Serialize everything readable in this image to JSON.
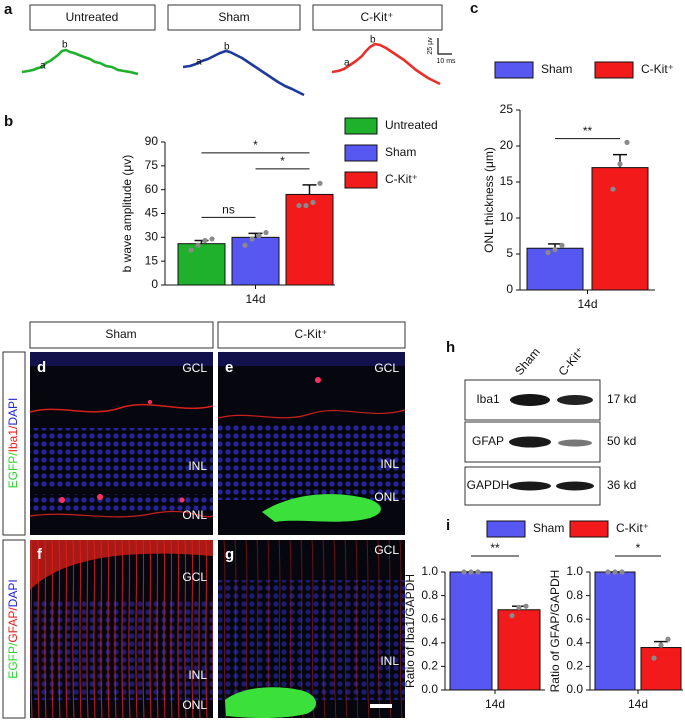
{
  "figure": {
    "panel_letters": [
      "a",
      "b",
      "c",
      "d",
      "e",
      "f",
      "g",
      "h",
      "i"
    ],
    "erg": {
      "conditions": [
        "Untreated",
        "Sham",
        "C-Kit⁺"
      ],
      "wave_labels": [
        "a",
        "b"
      ],
      "scale_y": "25 μv",
      "scale_x": "10 ms"
    },
    "histology": {
      "columns": [
        "Sham",
        "C-Kit⁺"
      ],
      "row_labels": [
        [
          {
            "text": "EGFP/",
            "color": "#2fd12f"
          },
          {
            "text": "Iba1/",
            "color": "#e8201c"
          },
          {
            "text": "DAPI",
            "color": "#2424d8"
          }
        ],
        [
          {
            "text": "EGFP/",
            "color": "#2fd12f"
          },
          {
            "text": "GFAP/",
            "color": "#e8201c"
          },
          {
            "text": "DAPI",
            "color": "#2424d8"
          }
        ]
      ],
      "layers": [
        "GCL",
        "INL",
        "ONL"
      ]
    },
    "blot": {
      "lanes": [
        "Sham",
        "C-Kit⁺"
      ],
      "rows": [
        {
          "protein": "Iba1",
          "size": "17 kd"
        },
        {
          "protein": "GFAP",
          "size": "50 kd"
        },
        {
          "protein": "GAPDH",
          "size": "36 kd"
        }
      ]
    }
  },
  "chart_data": [
    {
      "type": "bar",
      "ylabel": "b wave amplitude (μv)",
      "categories": [
        "14d"
      ],
      "ylim": [
        0,
        90
      ],
      "yticks": [
        0,
        15,
        30,
        45,
        60,
        75,
        90
      ],
      "legend": "right",
      "series": [
        {
          "name": "Untreated",
          "color": "#1fb02c",
          "values": [
            26
          ],
          "errors": [
            2
          ],
          "points": [
            [
              22,
              25,
              28,
              29
            ]
          ]
        },
        {
          "name": "Sham",
          "color": "#5757f2",
          "values": [
            30
          ],
          "errors": [
            2.5
          ],
          "points": [
            [
              25,
              29,
              31,
              33
            ]
          ]
        },
        {
          "name": "C-Kit⁺",
          "color": "#f21a1a",
          "values": [
            57
          ],
          "errors": [
            6
          ],
          "points": [
            [
              50,
              50,
              52,
              64
            ]
          ]
        }
      ],
      "annotations": [
        {
          "text": "ns",
          "between": [
            "Untreated",
            "Sham"
          ]
        },
        {
          "text": "*",
          "between": [
            "Sham",
            "C-Kit⁺"
          ]
        },
        {
          "text": "*",
          "between": [
            "Untreated",
            "C-Kit⁺"
          ]
        }
      ]
    },
    {
      "type": "bar",
      "ylabel": "ONL thickness (μm)",
      "categories": [
        "14d"
      ],
      "ylim": [
        0,
        25
      ],
      "yticks": [
        0,
        5,
        10,
        15,
        20,
        25
      ],
      "legend": "top",
      "series": [
        {
          "name": "Sham",
          "color": "#5757f2",
          "values": [
            5.8
          ],
          "errors": [
            0.6
          ],
          "points": [
            [
              5.2,
              5.6,
              6.2
            ]
          ]
        },
        {
          "name": "C-Kit⁺",
          "color": "#f21a1a",
          "values": [
            17
          ],
          "errors": [
            1.8
          ],
          "points": [
            [
              14,
              17.5,
              20.5
            ]
          ]
        }
      ],
      "annotations": [
        {
          "text": "**",
          "between": [
            "Sham",
            "C-Kit⁺"
          ]
        }
      ]
    },
    {
      "type": "bar",
      "ylabel": "Ratio of Iba1/GAPDH",
      "categories": [
        "14d"
      ],
      "ylim": [
        0,
        1
      ],
      "yticks": [
        {
          "value": 0,
          "label": "0.0"
        },
        0.2,
        0.4,
        0.6,
        0.8,
        {
          "value": 1,
          "label": "1.0"
        }
      ],
      "legend": "top",
      "series": [
        {
          "name": "Sham",
          "color": "#5757f2",
          "values": [
            1
          ],
          "errors": [
            0
          ],
          "points": [
            [
              1,
              1,
              1
            ]
          ]
        },
        {
          "name": "C-Kit⁺",
          "color": "#f21a1a",
          "values": [
            0.68
          ],
          "errors": [
            0.03
          ],
          "points": [
            [
              0.63,
              0.7,
              0.71
            ]
          ]
        }
      ],
      "annotations": [
        {
          "text": "**",
          "between": [
            "Sham",
            "C-Kit⁺"
          ]
        }
      ]
    },
    {
      "type": "bar",
      "ylabel": "Ratio of GFAP/GAPDH",
      "categories": [
        "14d"
      ],
      "ylim": [
        0,
        1
      ],
      "yticks": [
        {
          "value": 0,
          "label": "0.0"
        },
        0.2,
        0.4,
        0.6,
        0.8,
        {
          "value": 1,
          "label": "1.0"
        }
      ],
      "legend": false,
      "series": [
        {
          "name": "Sham",
          "color": "#5757f2",
          "values": [
            1
          ],
          "errors": [
            0
          ],
          "points": [
            [
              1,
              1,
              1
            ]
          ]
        },
        {
          "name": "C-Kit⁺",
          "color": "#f21a1a",
          "values": [
            0.36
          ],
          "errors": [
            0.05
          ],
          "points": [
            [
              0.27,
              0.38,
              0.43
            ]
          ]
        }
      ],
      "annotations": [
        {
          "text": "*",
          "between": [
            "Sham",
            "C-Kit⁺"
          ]
        }
      ]
    }
  ]
}
